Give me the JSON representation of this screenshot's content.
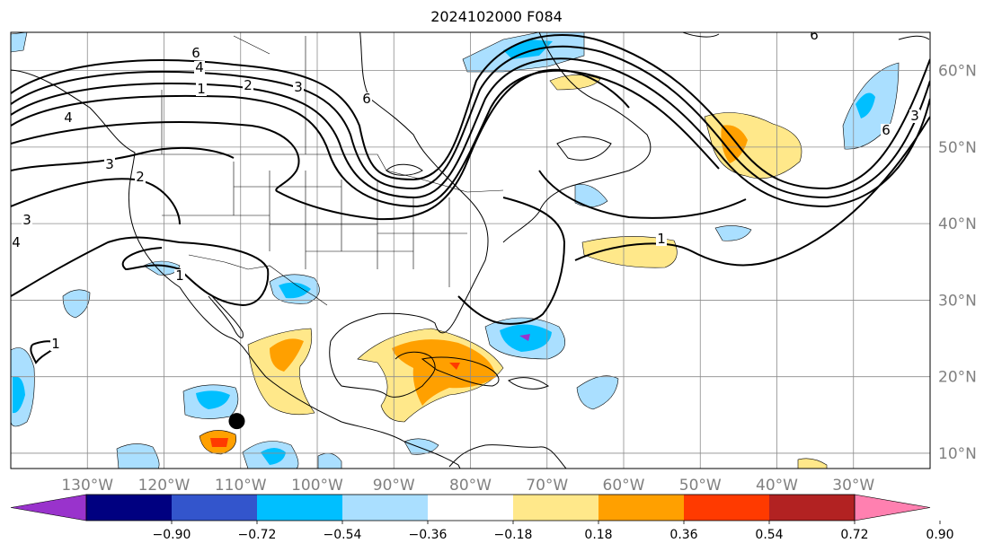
{
  "title": "2024102000 F084",
  "map": {
    "projection": "PlateCarree",
    "lon_range": [
      -140,
      -20
    ],
    "lat_range": [
      8,
      65
    ],
    "lon_ticks": [
      "130°W",
      "120°W",
      "110°W",
      "100°W",
      "90°W",
      "80°W",
      "70°W",
      "60°W",
      "50°W",
      "40°W",
      "30°W"
    ],
    "lat_ticks": [
      "60°N",
      "50°N",
      "40°N",
      "30°N",
      "20°N",
      "10°N"
    ],
    "grid": true,
    "marker": {
      "name": "storm-center",
      "lon": -110.5,
      "lat": 14.2,
      "color": "#000000"
    },
    "contour_labels": [
      "6",
      "4",
      "1",
      "2",
      "3",
      "6",
      "4",
      "3",
      "2",
      "1",
      "3",
      "4",
      "1",
      "1",
      "1",
      "6",
      "3",
      "6"
    ]
  },
  "colorbar": {
    "ticks": [
      "−0.90",
      "−0.72",
      "−0.54",
      "−0.36",
      "−0.18",
      "0.18",
      "0.36",
      "0.54",
      "0.72",
      "0.90"
    ],
    "colors": [
      "#9933cc",
      "#000080",
      "#3355cc",
      "#00bfff",
      "#aadfff",
      "#ffffff",
      "#ffe88a",
      "#ffa000",
      "#ff3a00",
      "#b22222",
      "#ff80b0"
    ],
    "extend": "both"
  }
}
